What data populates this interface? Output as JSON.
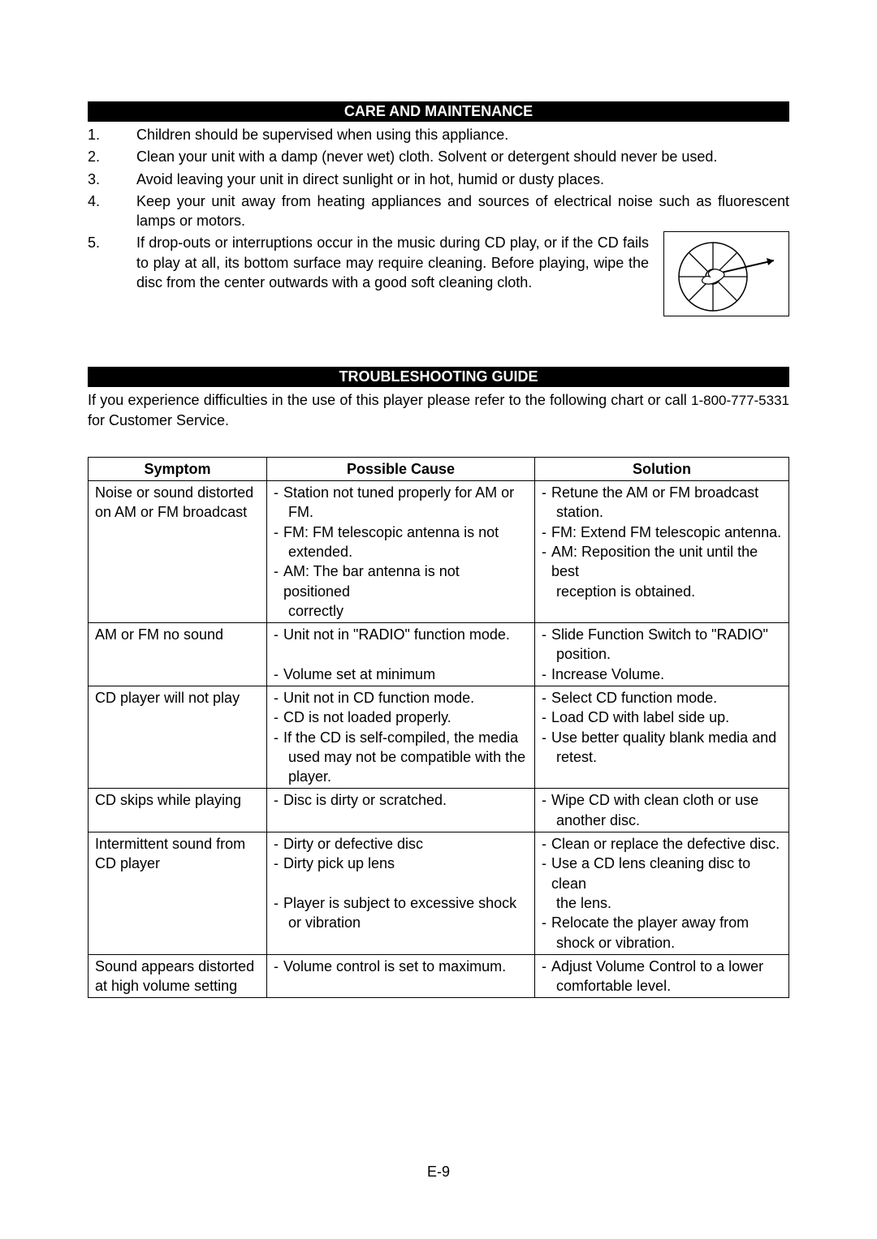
{
  "care": {
    "title": "CARE AND MAINTENANCE",
    "items": [
      {
        "num": "1.",
        "text": "Children should be supervised when using this appliance."
      },
      {
        "num": "2.",
        "text": "Clean your unit with a damp (never wet) cloth. Solvent or detergent should never be used."
      },
      {
        "num": "3.",
        "text": "Avoid leaving your unit in direct sunlight or in hot, humid or dusty places."
      },
      {
        "num": "4.",
        "text": "Keep your unit away from heating appliances and sources of electrical noise such as fluorescent lamps or motors."
      },
      {
        "num": "5.",
        "text": "If drop-outs or interruptions occur in the music during CD play, or if the CD fails to play at all, its bottom surface may require cleaning.  Before playing, wipe the disc from the center outwards with a good soft cleaning cloth."
      }
    ]
  },
  "trouble": {
    "title": "TROUBLESHOOTING GUIDE",
    "intro_a": "If you experience difficulties in the use of this player please refer to the following chart or call ",
    "intro_phone": "1-800-777-5331",
    "intro_b": " for Customer Service.",
    "headers": {
      "symptom": "Symptom",
      "cause": "Possible Cause",
      "solution": "Solution"
    },
    "rows": [
      {
        "symptom": "Noise or sound distorted on AM or FM broadcast",
        "cause": [
          {
            "t": "Station not tuned properly for AM or",
            "d": true
          },
          {
            "t": "FM.",
            "d": false,
            "indent": true
          },
          {
            "t": "FM: FM telescopic antenna is not",
            "d": true
          },
          {
            "t": "extended.",
            "d": false,
            "indent": true
          },
          {
            "t": "AM: The bar antenna is not positioned",
            "d": true
          },
          {
            "t": "correctly",
            "d": false,
            "indent": true
          }
        ],
        "solution": [
          {
            "t": "Retune the AM or FM broadcast",
            "d": true
          },
          {
            "t": "station.",
            "d": false,
            "indent": true
          },
          {
            "t": "FM: Extend FM telescopic antenna.",
            "d": true
          },
          {
            "t": "AM: Reposition the unit until the best",
            "d": true
          },
          {
            "t": "reception is obtained.",
            "d": false,
            "indent": true
          }
        ]
      },
      {
        "symptom": "AM or FM no sound",
        "cause": [
          {
            "t": "Unit not in \"RADIO\" function mode.",
            "d": true
          },
          {
            "t": "",
            "d": false
          },
          {
            "t": "Volume set at minimum",
            "d": true
          }
        ],
        "solution": [
          {
            "t": "Slide Function Switch to \"RADIO\"",
            "d": true
          },
          {
            "t": "position.",
            "d": false,
            "indent": true
          },
          {
            "t": "Increase Volume.",
            "d": true
          }
        ]
      },
      {
        "symptom": "CD player will not play",
        "cause": [
          {
            "t": "Unit not in CD function mode.",
            "d": true
          },
          {
            "t": "CD is not loaded properly.",
            "d": true
          },
          {
            "t": "If the CD is self-compiled, the media",
            "d": true
          },
          {
            "t": "used may not be compatible with the",
            "d": false,
            "indent": true
          },
          {
            "t": "player.",
            "d": false,
            "indent": true
          }
        ],
        "solution": [
          {
            "t": "Select CD function mode.",
            "d": true
          },
          {
            "t": "Load CD with label side up.",
            "d": true
          },
          {
            "t": "Use better quality blank media and",
            "d": true
          },
          {
            "t": "retest.",
            "d": false,
            "indent": true
          }
        ]
      },
      {
        "symptom": "CD skips while playing",
        "cause": [
          {
            "t": "Disc is dirty or scratched.",
            "d": true
          }
        ],
        "solution": [
          {
            "t": "Wipe CD with clean cloth or use",
            "d": true
          },
          {
            "t": "another disc.",
            "d": false,
            "indent": true
          }
        ]
      },
      {
        "symptom": "Intermittent sound from CD player",
        "cause": [
          {
            "t": "Dirty or defective disc",
            "d": true
          },
          {
            "t": "Dirty pick up lens",
            "d": true
          },
          {
            "t": "",
            "d": false
          },
          {
            "t": "Player is subject to excessive shock",
            "d": true
          },
          {
            "t": "or vibration",
            "d": false,
            "indent": true
          }
        ],
        "solution": [
          {
            "t": "Clean or replace the defective disc.",
            "d": true
          },
          {
            "t": "Use a CD lens cleaning disc to clean",
            "d": true
          },
          {
            "t": "the lens.",
            "d": false,
            "indent": true
          },
          {
            "t": "Relocate the player away from",
            "d": true
          },
          {
            "t": "shock or vibration.",
            "d": false,
            "indent": true
          }
        ]
      },
      {
        "symptom": "Sound appears distorted at high volume setting",
        "cause": [
          {
            "t": "Volume control is set to maximum.",
            "d": true
          }
        ],
        "solution": [
          {
            "t": "Adjust Volume Control to a lower",
            "d": true
          },
          {
            "t": "comfortable level.",
            "d": false,
            "indent": true
          }
        ]
      }
    ]
  },
  "page_number": "E-9",
  "colors": {
    "header_bg": "#000000",
    "header_fg": "#ffffff",
    "text": "#000000",
    "page_bg": "#ffffff"
  }
}
